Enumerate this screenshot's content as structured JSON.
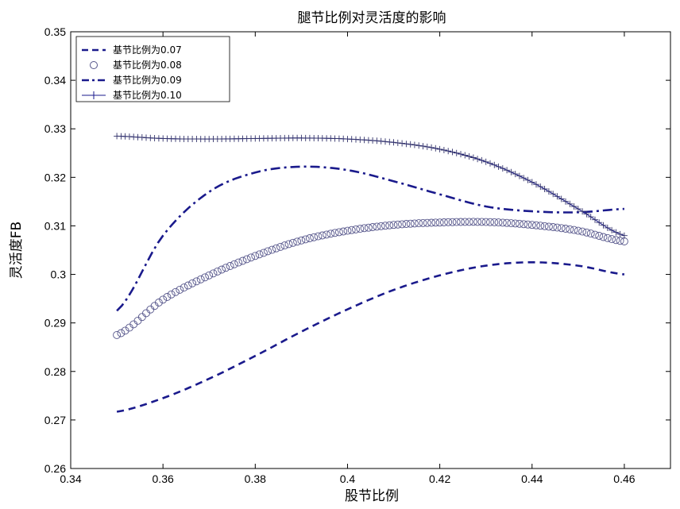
{
  "chart_data": {
    "type": "line",
    "title": "腿节比例对灵活度的影响",
    "xlabel": "股节比例",
    "ylabel": "灵活度FB",
    "xlim": [
      0.34,
      0.47
    ],
    "ylim": [
      0.26,
      0.35
    ],
    "xticks": [
      "0.34",
      "0.36",
      "0.38",
      "0.4",
      "0.42",
      "0.44",
      "0.46"
    ],
    "yticks": [
      "0.26",
      "0.27",
      "0.28",
      "0.29",
      "0.3",
      "0.31",
      "0.32",
      "0.33",
      "0.34",
      "0.35"
    ],
    "grid": false,
    "legend_position": "top-left",
    "color": "#1a1a8c",
    "x": [
      0.35,
      0.36,
      0.37,
      0.38,
      0.39,
      0.4,
      0.41,
      0.42,
      0.43,
      0.44,
      0.45,
      0.46
    ],
    "series": [
      {
        "name": "基节比例为0.07",
        "style": "dashed",
        "values": [
          0.2717,
          0.2745,
          0.2785,
          0.2832,
          0.2882,
          0.2928,
          0.2968,
          0.2998,
          0.3018,
          0.3025,
          0.3018,
          0.3
        ]
      },
      {
        "name": "基节比例为0.08",
        "style": "circle-markers",
        "values": [
          0.2875,
          0.2948,
          0.2998,
          0.3038,
          0.307,
          0.309,
          0.3102,
          0.3107,
          0.3108,
          0.3102,
          0.309,
          0.3068
        ]
      },
      {
        "name": "基节比例为0.09",
        "style": "dash-dot",
        "values": [
          0.2925,
          0.308,
          0.317,
          0.321,
          0.3222,
          0.3215,
          0.3192,
          0.3165,
          0.314,
          0.313,
          0.3128,
          0.3135
        ]
      },
      {
        "name": "基节比例为0.10",
        "style": "plus-markers",
        "values": [
          0.3285,
          0.328,
          0.3279,
          0.328,
          0.3281,
          0.3279,
          0.3272,
          0.3258,
          0.3232,
          0.319,
          0.3135,
          0.308
        ]
      }
    ]
  }
}
